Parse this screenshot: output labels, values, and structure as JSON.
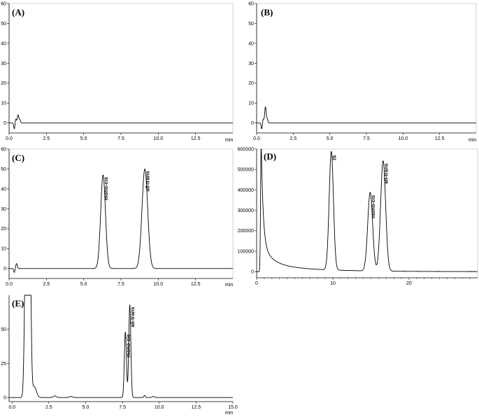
{
  "chart_data": [
    {
      "type": "line",
      "panel_label": "(A)",
      "xunit": "min",
      "xlim": [
        0,
        15
      ],
      "ylim": [
        -5,
        60
      ],
      "x_ticks": [
        "0.0",
        "2.5",
        "5.0",
        "7.5",
        "10.0",
        "12.5"
      ],
      "y_ticks": [
        "0",
        "10",
        "20",
        "30",
        "40",
        "50",
        "60"
      ],
      "peaks": [
        {
          "x": 0.35,
          "y": -3,
          "w": 0.04
        },
        {
          "x": 0.45,
          "y": 2,
          "w": 0.04
        },
        {
          "x": 0.6,
          "y": 4,
          "w": 0.05
        },
        {
          "x": 0.72,
          "y": 1.5,
          "w": 0.05
        }
      ],
      "peak_labels": []
    },
    {
      "type": "line",
      "panel_label": "(B)",
      "xunit": "min",
      "xlim": [
        0,
        15
      ],
      "ylim": [
        -5,
        60
      ],
      "x_ticks": [
        "0.0",
        "2.5",
        "5.0",
        "7.5",
        "10.0",
        "12.5"
      ],
      "y_ticks": [
        "0",
        "10",
        "20",
        "30",
        "40",
        "50",
        "60"
      ],
      "peaks": [
        {
          "x": 0.35,
          "y": -3,
          "w": 0.04
        },
        {
          "x": 0.45,
          "y": 2,
          "w": 0.04
        },
        {
          "x": 0.6,
          "y": 8,
          "w": 0.05
        },
        {
          "x": 0.72,
          "y": 2,
          "w": 0.05
        }
      ],
      "peak_labels": []
    },
    {
      "type": "line",
      "panel_label": "(C)",
      "xunit": "min",
      "xlim": [
        0,
        15
      ],
      "ylim": [
        -5,
        60
      ],
      "x_ticks": [
        "0.0",
        "2.5",
        "5.0",
        "7.5",
        "10.0",
        "12.5"
      ],
      "y_ticks": [
        "0",
        "10",
        "20",
        "30",
        "40",
        "50",
        "60"
      ],
      "peaks": [
        {
          "x": 0.35,
          "y": -2,
          "w": 0.04
        },
        {
          "x": 0.5,
          "y": 2.5,
          "w": 0.05
        },
        {
          "x": 6.3,
          "y": 47,
          "w": 0.16
        },
        {
          "x": 9.1,
          "y": 50,
          "w": 0.19
        }
      ],
      "peak_labels": [
        {
          "text": "mono-cis",
          "x": 6.3,
          "y": 47
        },
        {
          "text": "all-trans",
          "x": 9.1,
          "y": 50
        }
      ]
    },
    {
      "type": "line",
      "panel_label": "(D)",
      "xunit": "",
      "xlim": [
        0,
        29
      ],
      "ylim": [
        -30000,
        600000
      ],
      "x_ticks": [
        "0",
        "10",
        "20"
      ],
      "y_ticks": [
        "0",
        "100000",
        "200000",
        "300000",
        "400000",
        "500000",
        "600000"
      ],
      "peaks": [
        {
          "x": 9.8,
          "y": 580000,
          "w": 0.28
        },
        {
          "x": 14.9,
          "y": 385000,
          "w": 0.32
        },
        {
          "x": 16.6,
          "y": 540000,
          "w": 0.33
        }
      ],
      "solvent_front": {
        "x": 0.6,
        "height": 640000,
        "tail": 0.25
      },
      "peak_labels": [
        {
          "text": "IS",
          "x": 9.8,
          "y": 580000
        },
        {
          "text": "mono-cis",
          "x": 14.9,
          "y": 385000
        },
        {
          "text": "all-trans",
          "x": 16.6,
          "y": 540000
        }
      ]
    },
    {
      "type": "line",
      "panel_label": "(E)",
      "xunit": "min",
      "xlim": [
        -0.2,
        15
      ],
      "ylim": [
        -3,
        75
      ],
      "x_ticks": [
        "0.0",
        "2.5",
        "5.0",
        "7.5",
        "10.0",
        "12.5",
        "15.0"
      ],
      "y_ticks": [
        "0",
        "25",
        "50"
      ],
      "peaks": [
        {
          "x": 0.95,
          "y": 140,
          "w": 0.09
        },
        {
          "x": 1.2,
          "y": 140,
          "w": 0.08
        },
        {
          "x": 1.5,
          "y": 8,
          "w": 0.15
        },
        {
          "x": 2.9,
          "y": 1.2,
          "w": 0.1
        },
        {
          "x": 4.0,
          "y": 0.8,
          "w": 0.1
        },
        {
          "x": 7.7,
          "y": 48,
          "w": 0.07
        },
        {
          "x": 8.0,
          "y": 68,
          "w": 0.07
        },
        {
          "x": 9.0,
          "y": 1.5,
          "w": 0.05
        },
        {
          "x": 9.6,
          "y": 0.8,
          "w": 0.08
        }
      ],
      "peak_labels": [
        {
          "text": "mono-cis",
          "x": 7.7,
          "y": 48
        },
        {
          "text": "all-trans",
          "x": 8.0,
          "y": 68
        }
      ]
    }
  ]
}
